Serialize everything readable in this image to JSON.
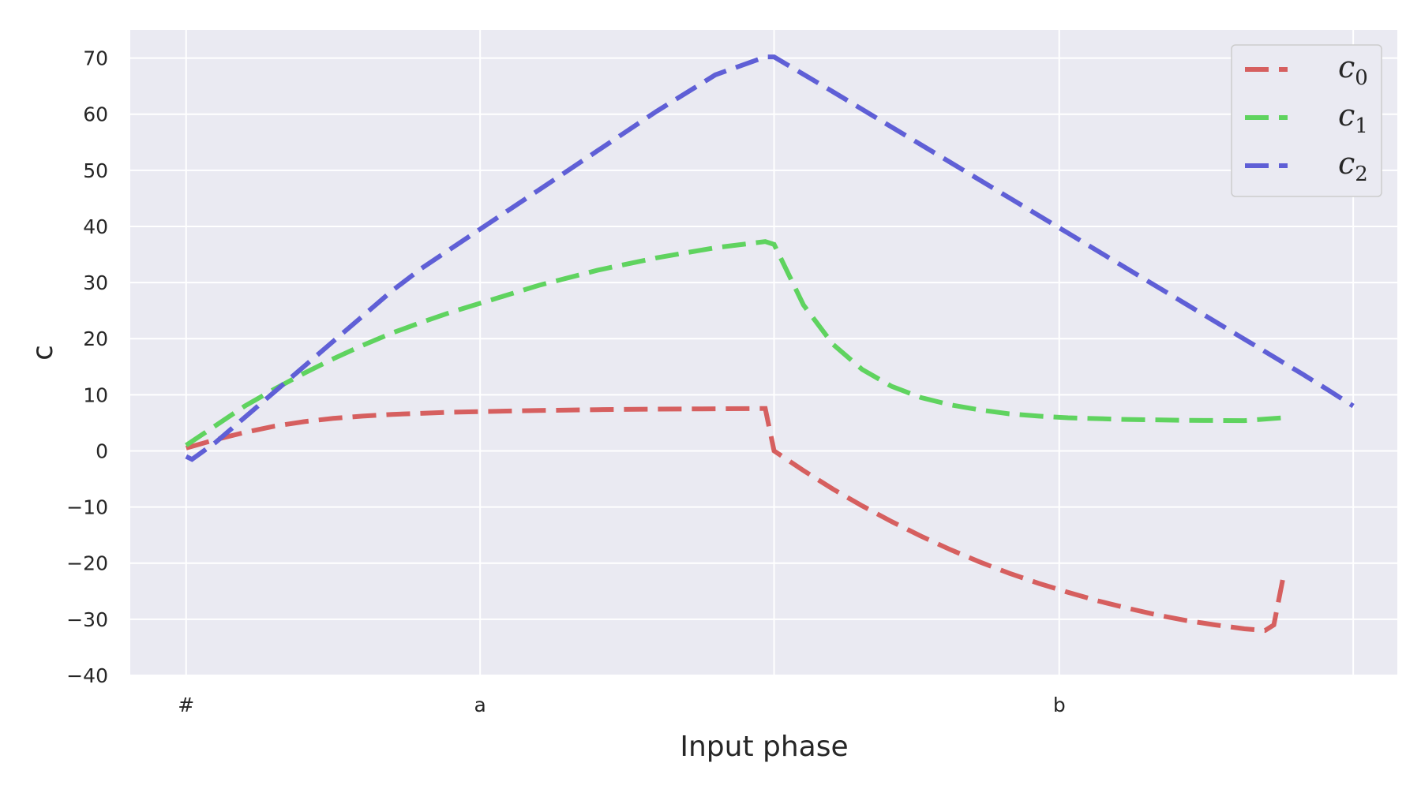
{
  "chart_data": {
    "type": "line",
    "title": "",
    "xlabel": "Input phase",
    "ylabel": "c",
    "xlim": [
      -0.19,
      4.12
    ],
    "ylim": [
      -40,
      75
    ],
    "yticks": [
      -40,
      -30,
      -20,
      -10,
      0,
      10,
      20,
      30,
      40,
      50,
      60,
      70
    ],
    "xticks": [
      {
        "pos": 0,
        "label": "#"
      },
      {
        "pos": 1,
        "label": "a"
      },
      {
        "pos": 2,
        "label": ""
      },
      {
        "pos": 2.97,
        "label": "b"
      },
      {
        "pos": 3.97,
        "label": ""
      }
    ],
    "grid": true,
    "legend_position": "top-right",
    "line_style": "dashed",
    "series": [
      {
        "name": "c",
        "subscript": "0",
        "color": "#d65f5f",
        "points": [
          [
            0,
            0.5
          ],
          [
            0.1,
            2
          ],
          [
            0.2,
            3.3
          ],
          [
            0.3,
            4.4
          ],
          [
            0.4,
            5.2
          ],
          [
            0.5,
            5.8
          ],
          [
            0.6,
            6.2
          ],
          [
            0.7,
            6.5
          ],
          [
            0.8,
            6.7
          ],
          [
            0.9,
            6.9
          ],
          [
            1.0,
            7.0
          ],
          [
            1.2,
            7.2
          ],
          [
            1.4,
            7.35
          ],
          [
            1.6,
            7.45
          ],
          [
            1.8,
            7.5
          ],
          [
            1.97,
            7.55
          ],
          [
            2.0,
            0
          ],
          [
            2.1,
            -3.5
          ],
          [
            2.2,
            -6.8
          ],
          [
            2.3,
            -9.8
          ],
          [
            2.4,
            -12.6
          ],
          [
            2.5,
            -15.2
          ],
          [
            2.6,
            -17.6
          ],
          [
            2.7,
            -19.8
          ],
          [
            2.8,
            -21.8
          ],
          [
            2.9,
            -23.6
          ],
          [
            3.0,
            -25.2
          ],
          [
            3.1,
            -26.7
          ],
          [
            3.2,
            -28
          ],
          [
            3.3,
            -29.2
          ],
          [
            3.4,
            -30.2
          ],
          [
            3.5,
            -31
          ],
          [
            3.6,
            -31.7
          ],
          [
            3.67,
            -32
          ],
          [
            3.7,
            -31
          ],
          [
            3.73,
            -23
          ]
        ]
      },
      {
        "name": "c",
        "subscript": "1",
        "color": "#5fd35f",
        "points": [
          [
            0,
            1
          ],
          [
            0.1,
            4.5
          ],
          [
            0.2,
            8
          ],
          [
            0.3,
            11
          ],
          [
            0.4,
            13.8
          ],
          [
            0.5,
            16.4
          ],
          [
            0.6,
            18.8
          ],
          [
            0.7,
            21
          ],
          [
            0.8,
            22.9
          ],
          [
            0.9,
            24.7
          ],
          [
            1.0,
            26.3
          ],
          [
            1.2,
            29.5
          ],
          [
            1.4,
            32.2
          ],
          [
            1.6,
            34.4
          ],
          [
            1.8,
            36.2
          ],
          [
            1.97,
            37.3
          ],
          [
            2.0,
            36.8
          ],
          [
            2.1,
            26
          ],
          [
            2.2,
            19
          ],
          [
            2.3,
            14.5
          ],
          [
            2.4,
            11.5
          ],
          [
            2.5,
            9.5
          ],
          [
            2.6,
            8.2
          ],
          [
            2.7,
            7.3
          ],
          [
            2.8,
            6.6
          ],
          [
            2.9,
            6.2
          ],
          [
            3.0,
            5.9
          ],
          [
            3.2,
            5.6
          ],
          [
            3.4,
            5.45
          ],
          [
            3.6,
            5.4
          ],
          [
            3.73,
            5.9
          ]
        ]
      },
      {
        "name": "c",
        "subscript": "2",
        "color": "#5f5fd6",
        "points": [
          [
            0,
            -1
          ],
          [
            0.02,
            -1.5
          ],
          [
            0.1,
            1.5
          ],
          [
            0.2,
            6
          ],
          [
            0.3,
            10.5
          ],
          [
            0.4,
            15
          ],
          [
            0.5,
            19.5
          ],
          [
            0.6,
            24
          ],
          [
            0.7,
            28.5
          ],
          [
            0.8,
            32.5
          ],
          [
            0.9,
            36
          ],
          [
            1.0,
            39.5
          ],
          [
            1.2,
            46.5
          ],
          [
            1.4,
            53.5
          ],
          [
            1.6,
            60.5
          ],
          [
            1.8,
            67
          ],
          [
            1.97,
            70.2
          ],
          [
            2.0,
            70.2
          ],
          [
            2.2,
            64
          ],
          [
            2.4,
            57.7
          ],
          [
            2.6,
            51.4
          ],
          [
            2.8,
            45.1
          ],
          [
            3.0,
            38.8
          ],
          [
            3.2,
            32.5
          ],
          [
            3.4,
            26.2
          ],
          [
            3.6,
            19.9
          ],
          [
            3.8,
            13.6
          ],
          [
            3.88,
            11
          ],
          [
            3.97,
            8
          ]
        ]
      }
    ]
  }
}
